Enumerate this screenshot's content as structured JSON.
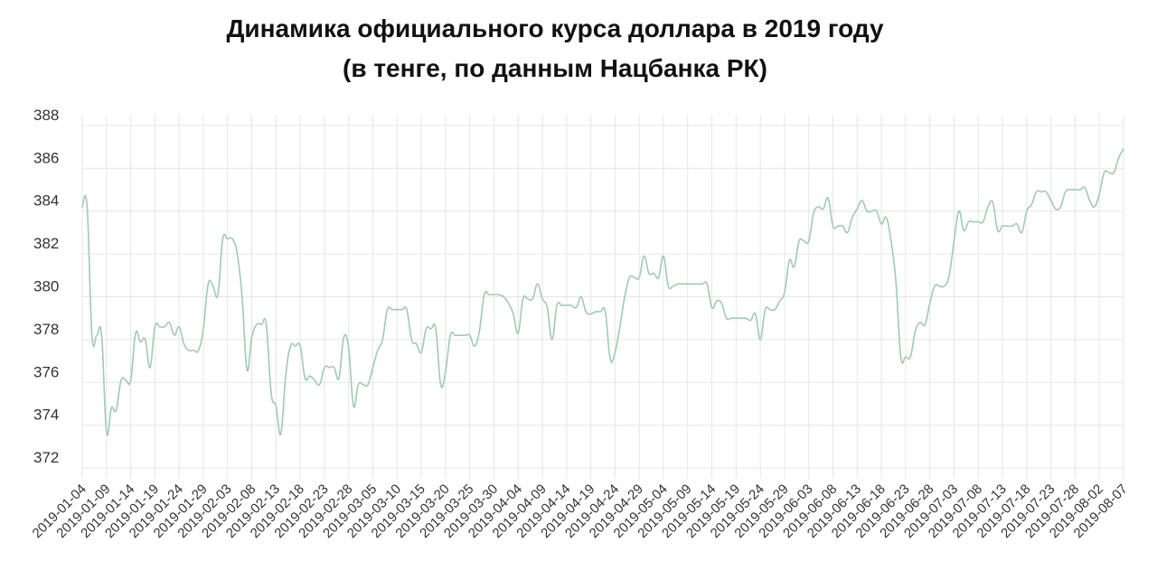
{
  "chart_data": {
    "type": "line",
    "title": "Динамика официального курса доллара в 2019 году",
    "subtitle": "(в тенге, по данным Нацбанка РК)",
    "xlabel": "",
    "ylabel": "",
    "ylim": [
      371.5,
      388.5
    ],
    "yticks": [
      372,
      374,
      376,
      378,
      380,
      382,
      384,
      386,
      388
    ],
    "grid": true,
    "legend": "none",
    "line_color": "#9fcbb2",
    "x_tick_labels": [
      "2019-01-04",
      "2019-01-09",
      "2019-01-14",
      "2019-01-19",
      "2019-01-24",
      "2019-01-29",
      "2019-02-03",
      "2019-02-08",
      "2019-02-13",
      "2019-02-18",
      "2019-02-23",
      "2019-02-28",
      "2019-03-05",
      "2019-03-10",
      "2019-03-15",
      "2019-03-20",
      "2019-03-25",
      "2019-03-30",
      "2019-04-04",
      "2019-04-09",
      "2019-04-14",
      "2019-04-19",
      "2019-04-24",
      "2019-04-29",
      "2019-05-04",
      "2019-05-09",
      "2019-05-14",
      "2019-05-19",
      "2019-05-24",
      "2019-05-29",
      "2019-06-03",
      "2019-06-08",
      "2019-06-13",
      "2019-06-18",
      "2019-06-23",
      "2019-06-28",
      "2019-07-03",
      "2019-07-08",
      "2019-07-13",
      "2019-07-18",
      "2019-07-23",
      "2019-07-28",
      "2019-08-02",
      "2019-08-07"
    ],
    "series": [
      {
        "points": [
          [
            "2019-01-04",
            384.2
          ],
          [
            "2019-01-05",
            384.2
          ],
          [
            "2019-01-06",
            378.2
          ],
          [
            "2019-01-07",
            378.2
          ],
          [
            "2019-01-08",
            378.2
          ],
          [
            "2019-01-09",
            373.7
          ],
          [
            "2019-01-10",
            374.8
          ],
          [
            "2019-01-11",
            374.7
          ],
          [
            "2019-01-12",
            376.1
          ],
          [
            "2019-01-13",
            376.1
          ],
          [
            "2019-01-14",
            376.1
          ],
          [
            "2019-01-15",
            378.3
          ],
          [
            "2019-01-16",
            377.9
          ],
          [
            "2019-01-17",
            378.0
          ],
          [
            "2019-01-18",
            376.7
          ],
          [
            "2019-01-19",
            378.6
          ],
          [
            "2019-01-20",
            378.6
          ],
          [
            "2019-01-21",
            378.6
          ],
          [
            "2019-01-22",
            378.8
          ],
          [
            "2019-01-23",
            378.2
          ],
          [
            "2019-01-24",
            378.6
          ],
          [
            "2019-01-25",
            377.8
          ],
          [
            "2019-01-26",
            377.5
          ],
          [
            "2019-01-27",
            377.5
          ],
          [
            "2019-01-28",
            377.5
          ],
          [
            "2019-01-29",
            378.5
          ],
          [
            "2019-01-30",
            380.6
          ],
          [
            "2019-01-31",
            380.5
          ],
          [
            "2019-02-01",
            380.1
          ],
          [
            "2019-02-02",
            382.7
          ],
          [
            "2019-02-03",
            382.7
          ],
          [
            "2019-02-04",
            382.7
          ],
          [
            "2019-02-05",
            382.0
          ],
          [
            "2019-02-06",
            380.0
          ],
          [
            "2019-02-07",
            376.6
          ],
          [
            "2019-02-08",
            378.1
          ],
          [
            "2019-02-09",
            378.7
          ],
          [
            "2019-02-10",
            378.7
          ],
          [
            "2019-02-11",
            378.7
          ],
          [
            "2019-02-12",
            375.5
          ],
          [
            "2019-02-13",
            374.9
          ],
          [
            "2019-02-14",
            373.6
          ],
          [
            "2019-02-15",
            376.3
          ],
          [
            "2019-02-16",
            377.7
          ],
          [
            "2019-02-17",
            377.7
          ],
          [
            "2019-02-18",
            377.7
          ],
          [
            "2019-02-19",
            376.2
          ],
          [
            "2019-02-20",
            376.3
          ],
          [
            "2019-02-21",
            376.1
          ],
          [
            "2019-02-22",
            375.9
          ],
          [
            "2019-02-23",
            376.7
          ],
          [
            "2019-02-24",
            376.7
          ],
          [
            "2019-02-25",
            376.7
          ],
          [
            "2019-02-26",
            376.2
          ],
          [
            "2019-02-27",
            378.1
          ],
          [
            "2019-02-28",
            377.6
          ],
          [
            "2019-03-01",
            374.9
          ],
          [
            "2019-03-02",
            375.9
          ],
          [
            "2019-03-03",
            375.9
          ],
          [
            "2019-03-04",
            375.9
          ],
          [
            "2019-03-05",
            376.7
          ],
          [
            "2019-03-06",
            377.5
          ],
          [
            "2019-03-07",
            378.0
          ],
          [
            "2019-03-08",
            379.4
          ],
          [
            "2019-03-09",
            379.4
          ],
          [
            "2019-03-10",
            379.4
          ],
          [
            "2019-03-11",
            379.4
          ],
          [
            "2019-03-12",
            379.4
          ],
          [
            "2019-03-13",
            378.0
          ],
          [
            "2019-03-14",
            377.8
          ],
          [
            "2019-03-15",
            377.4
          ],
          [
            "2019-03-16",
            378.5
          ],
          [
            "2019-03-17",
            378.5
          ],
          [
            "2019-03-18",
            378.5
          ],
          [
            "2019-03-19",
            375.9
          ],
          [
            "2019-03-20",
            376.5
          ],
          [
            "2019-03-21",
            378.2
          ],
          [
            "2019-03-22",
            378.2
          ],
          [
            "2019-03-23",
            378.2
          ],
          [
            "2019-03-24",
            378.2
          ],
          [
            "2019-03-25",
            378.2
          ],
          [
            "2019-03-26",
            377.7
          ],
          [
            "2019-03-27",
            378.4
          ],
          [
            "2019-03-28",
            380.1
          ],
          [
            "2019-03-29",
            380.1
          ],
          [
            "2019-03-30",
            380.1
          ],
          [
            "2019-03-31",
            380.1
          ],
          [
            "2019-04-01",
            380.0
          ],
          [
            "2019-04-02",
            379.7
          ],
          [
            "2019-04-03",
            379.2
          ],
          [
            "2019-04-04",
            378.3
          ],
          [
            "2019-04-05",
            379.9
          ],
          [
            "2019-04-06",
            379.9
          ],
          [
            "2019-04-07",
            379.9
          ],
          [
            "2019-04-08",
            380.6
          ],
          [
            "2019-04-09",
            379.9
          ],
          [
            "2019-04-10",
            379.5
          ],
          [
            "2019-04-11",
            378.0
          ],
          [
            "2019-04-12",
            379.6
          ],
          [
            "2019-04-13",
            379.6
          ],
          [
            "2019-04-14",
            379.6
          ],
          [
            "2019-04-15",
            379.6
          ],
          [
            "2019-04-16",
            379.5
          ],
          [
            "2019-04-17",
            380.0
          ],
          [
            "2019-04-18",
            379.3
          ],
          [
            "2019-04-19",
            379.2
          ],
          [
            "2019-04-20",
            379.3
          ],
          [
            "2019-04-21",
            379.3
          ],
          [
            "2019-04-22",
            379.3
          ],
          [
            "2019-04-23",
            377.1
          ],
          [
            "2019-04-24",
            377.4
          ],
          [
            "2019-04-25",
            378.6
          ],
          [
            "2019-04-26",
            380.0
          ],
          [
            "2019-04-27",
            380.9
          ],
          [
            "2019-04-28",
            380.9
          ],
          [
            "2019-04-29",
            380.9
          ],
          [
            "2019-04-30",
            381.9
          ],
          [
            "2019-05-01",
            381.1
          ],
          [
            "2019-05-02",
            381.1
          ],
          [
            "2019-05-03",
            380.9
          ],
          [
            "2019-05-04",
            381.9
          ],
          [
            "2019-05-05",
            380.5
          ],
          [
            "2019-05-06",
            380.5
          ],
          [
            "2019-05-07",
            380.6
          ],
          [
            "2019-05-08",
            380.6
          ],
          [
            "2019-05-09",
            380.6
          ],
          [
            "2019-05-10",
            380.6
          ],
          [
            "2019-05-11",
            380.6
          ],
          [
            "2019-05-12",
            380.6
          ],
          [
            "2019-05-13",
            380.6
          ],
          [
            "2019-05-14",
            379.5
          ],
          [
            "2019-05-15",
            379.8
          ],
          [
            "2019-05-16",
            379.7
          ],
          [
            "2019-05-17",
            379.0
          ],
          [
            "2019-05-18",
            379.0
          ],
          [
            "2019-05-19",
            379.0
          ],
          [
            "2019-05-20",
            379.0
          ],
          [
            "2019-05-21",
            379.0
          ],
          [
            "2019-05-22",
            378.9
          ],
          [
            "2019-05-23",
            379.2
          ],
          [
            "2019-05-24",
            378.0
          ],
          [
            "2019-05-25",
            379.4
          ],
          [
            "2019-05-26",
            379.4
          ],
          [
            "2019-05-27",
            379.4
          ],
          [
            "2019-05-28",
            379.8
          ],
          [
            "2019-05-29",
            380.2
          ],
          [
            "2019-05-30",
            381.7
          ],
          [
            "2019-05-31",
            381.4
          ],
          [
            "2019-06-01",
            382.6
          ],
          [
            "2019-06-02",
            382.6
          ],
          [
            "2019-06-03",
            382.6
          ],
          [
            "2019-06-04",
            383.9
          ],
          [
            "2019-06-05",
            384.2
          ],
          [
            "2019-06-06",
            384.1
          ],
          [
            "2019-06-07",
            384.6
          ],
          [
            "2019-06-08",
            383.3
          ],
          [
            "2019-06-09",
            383.3
          ],
          [
            "2019-06-10",
            383.3
          ],
          [
            "2019-06-11",
            383.0
          ],
          [
            "2019-06-12",
            383.7
          ],
          [
            "2019-06-13",
            384.1
          ],
          [
            "2019-06-14",
            384.5
          ],
          [
            "2019-06-15",
            384.0
          ],
          [
            "2019-06-16",
            384.0
          ],
          [
            "2019-06-17",
            384.0
          ],
          [
            "2019-06-18",
            383.4
          ],
          [
            "2019-06-19",
            383.7
          ],
          [
            "2019-06-20",
            382.6
          ],
          [
            "2019-06-21",
            380.7
          ],
          [
            "2019-06-22",
            377.2
          ],
          [
            "2019-06-23",
            377.2
          ],
          [
            "2019-06-24",
            377.2
          ],
          [
            "2019-06-25",
            378.4
          ],
          [
            "2019-06-26",
            378.8
          ],
          [
            "2019-06-27",
            378.7
          ],
          [
            "2019-06-28",
            379.7
          ],
          [
            "2019-06-29",
            380.5
          ],
          [
            "2019-06-30",
            380.5
          ],
          [
            "2019-07-01",
            380.5
          ],
          [
            "2019-07-02",
            381.0
          ],
          [
            "2019-07-03",
            382.6
          ],
          [
            "2019-07-04",
            384.0
          ],
          [
            "2019-07-05",
            383.1
          ],
          [
            "2019-07-06",
            383.5
          ],
          [
            "2019-07-07",
            383.5
          ],
          [
            "2019-07-08",
            383.5
          ],
          [
            "2019-07-09",
            383.5
          ],
          [
            "2019-07-10",
            384.2
          ],
          [
            "2019-07-11",
            384.4
          ],
          [
            "2019-07-12",
            383.1
          ],
          [
            "2019-07-13",
            383.3
          ],
          [
            "2019-07-14",
            383.3
          ],
          [
            "2019-07-15",
            383.3
          ],
          [
            "2019-07-16",
            383.4
          ],
          [
            "2019-07-17",
            383.0
          ],
          [
            "2019-07-18",
            384.0
          ],
          [
            "2019-07-19",
            384.3
          ],
          [
            "2019-07-20",
            384.9
          ],
          [
            "2019-07-21",
            384.9
          ],
          [
            "2019-07-22",
            384.9
          ],
          [
            "2019-07-23",
            384.5
          ],
          [
            "2019-07-24",
            384.1
          ],
          [
            "2019-07-25",
            384.2
          ],
          [
            "2019-07-26",
            384.9
          ],
          [
            "2019-07-27",
            385.0
          ],
          [
            "2019-07-28",
            385.0
          ],
          [
            "2019-07-29",
            385.0
          ],
          [
            "2019-07-30",
            385.1
          ],
          [
            "2019-07-31",
            384.5
          ],
          [
            "2019-08-01",
            384.2
          ],
          [
            "2019-08-02",
            384.8
          ],
          [
            "2019-08-03",
            385.8
          ],
          [
            "2019-08-04",
            385.8
          ],
          [
            "2019-08-05",
            385.8
          ],
          [
            "2019-08-06",
            386.5
          ],
          [
            "2019-08-07",
            386.9
          ]
        ]
      }
    ]
  }
}
